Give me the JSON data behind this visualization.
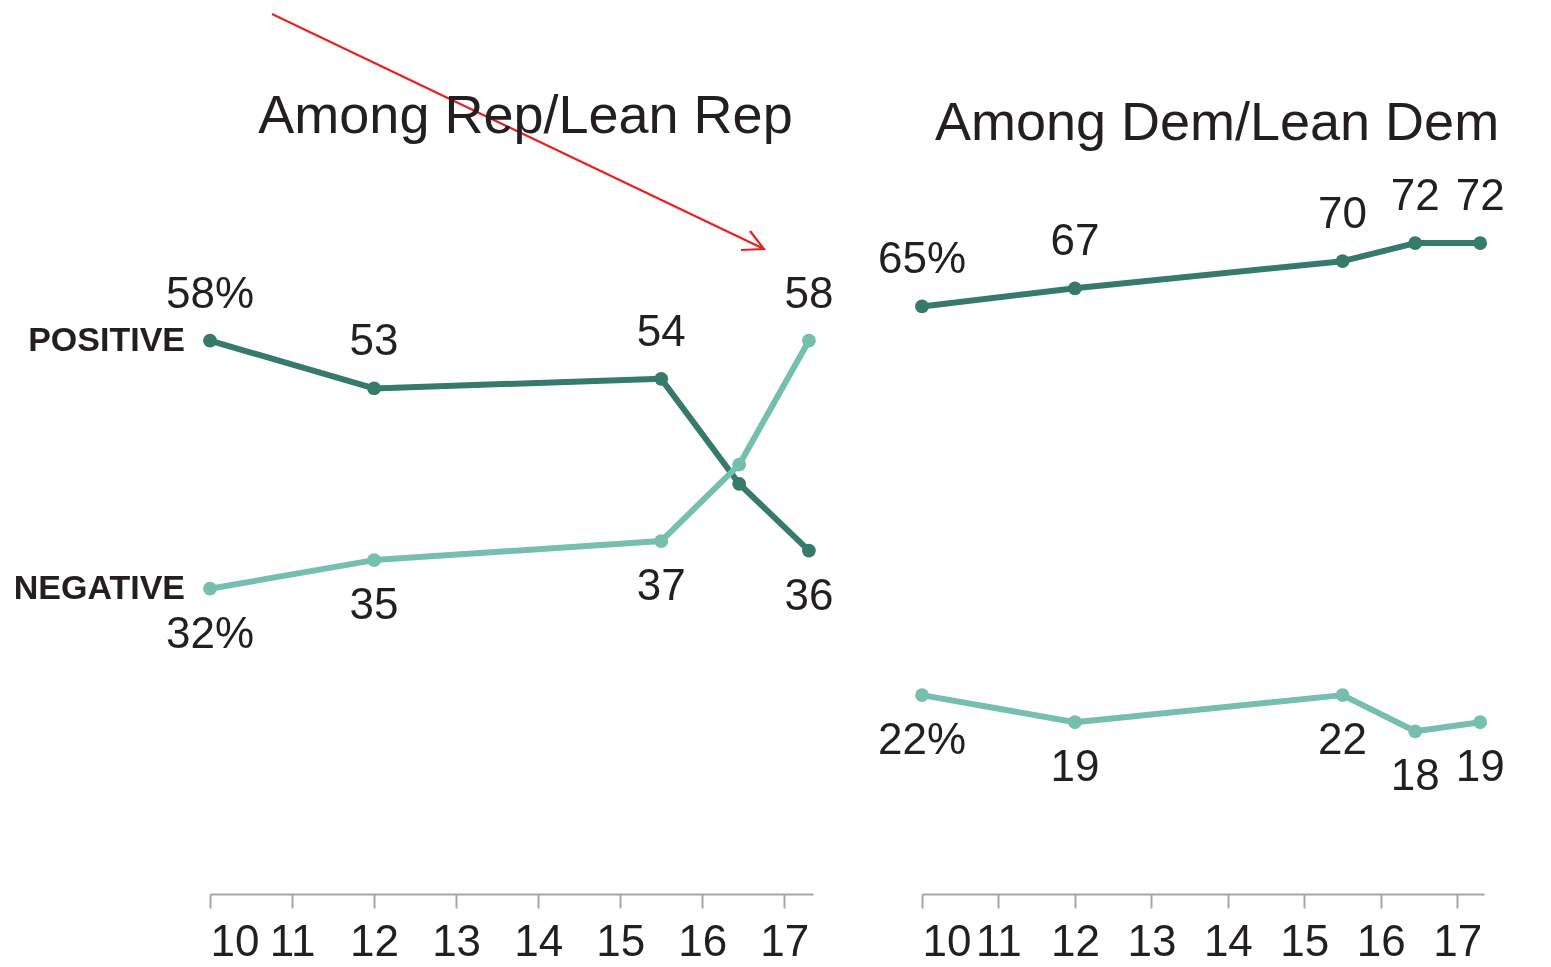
{
  "chart_data": [
    {
      "type": "line",
      "title": "Among Rep/Lean Rep",
      "x": [
        10,
        12,
        15.5,
        16.45,
        17.3
      ],
      "xlim": [
        10,
        17.35
      ],
      "xticks": [
        10,
        11,
        12,
        13,
        14,
        15,
        16,
        17
      ],
      "tick_labels": "x",
      "marker": "circle",
      "line_style": "solid",
      "series": [
        {
          "name": "POSITIVE",
          "color": "#357a6a",
          "values": [
            58,
            53,
            54,
            43,
            36
          ],
          "value_labels": [
            "58%",
            "53",
            "54",
            null,
            "36"
          ]
        },
        {
          "name": "NEGATIVE",
          "color": "#74bfad",
          "values": [
            32,
            35,
            37,
            45,
            58
          ],
          "value_labels": [
            "32%",
            "35",
            "37",
            null,
            "58"
          ]
        }
      ]
    },
    {
      "type": "line",
      "title": "Among Dem/Lean Dem",
      "x": [
        10,
        12,
        15.5,
        16.45,
        17.3
      ],
      "xlim": [
        10,
        17.35
      ],
      "xticks": [
        10,
        11,
        12,
        13,
        14,
        15,
        16,
        17
      ],
      "tick_labels": "x",
      "marker": "circle",
      "line_style": "solid",
      "series": [
        {
          "color": "#357a6a",
          "values": [
            65,
            67,
            70,
            72,
            72
          ],
          "value_labels": [
            "65%",
            "67",
            "70",
            "72",
            "72"
          ]
        },
        {
          "color": "#74bfad",
          "values": [
            22,
            19,
            22,
            18,
            19
          ],
          "value_labels": [
            "22%",
            "19",
            "22",
            "18",
            "19"
          ]
        }
      ]
    }
  ]
}
